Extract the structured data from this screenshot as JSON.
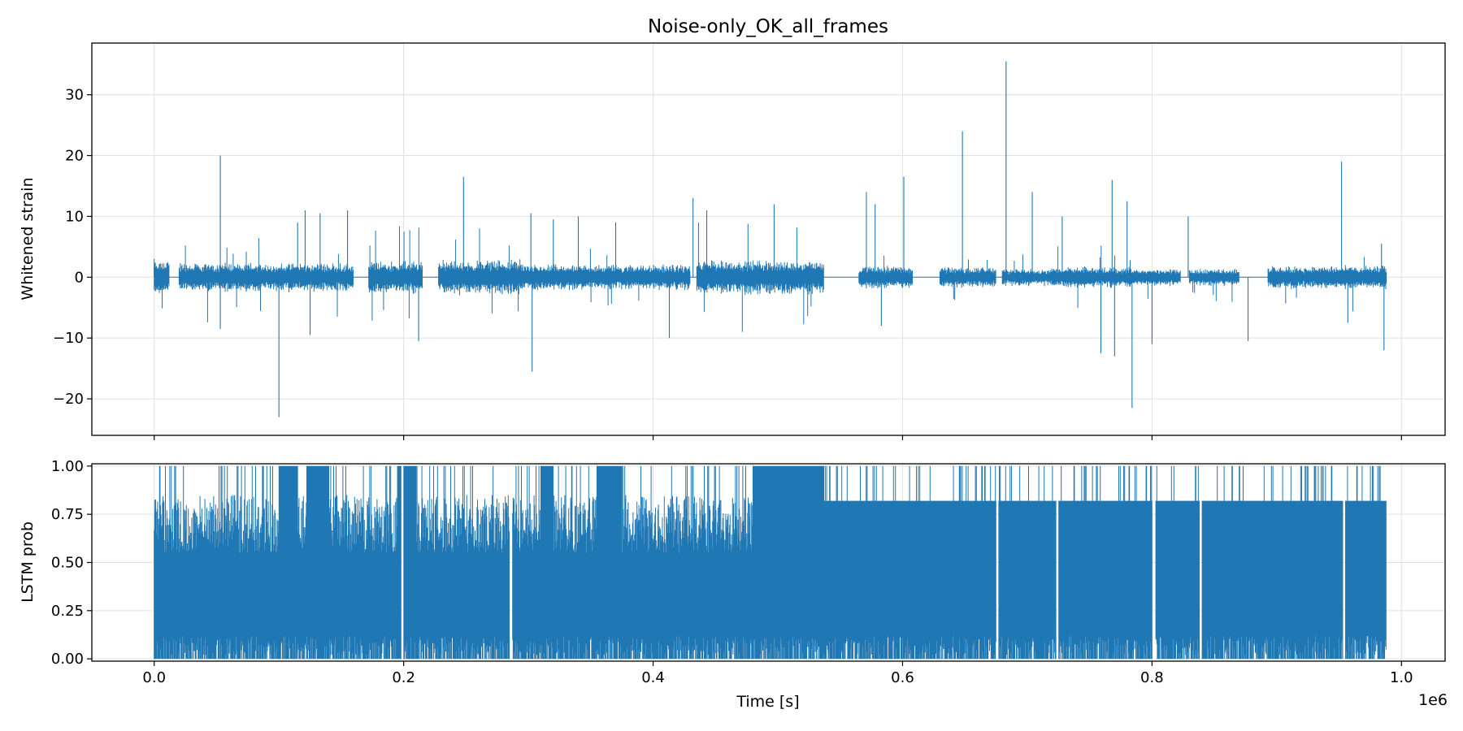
{
  "chart_data": [
    {
      "type": "line",
      "title": "Noise-only_OK_all_frames",
      "xlabel": "",
      "ylabel": "Whitened strain",
      "xlim": [
        -50000,
        1035000
      ],
      "ylim": [
        -26,
        38.5
      ],
      "xticks": [
        0,
        200000,
        400000,
        600000,
        800000,
        1000000
      ],
      "xtick_labels": [],
      "yticks": [
        -20,
        -10,
        0,
        10,
        20,
        30
      ],
      "ytick_labels": [
        "−20",
        "−10",
        "0",
        "10",
        "20",
        "30"
      ],
      "grid": true,
      "color": "#1f77b4",
      "series": [
        {
          "segments_x": [
            [
              0,
              12000
            ],
            [
              20000,
              160000
            ],
            [
              172000,
              215000
            ],
            [
              228000,
              295000
            ],
            [
              295000,
              430000
            ],
            [
              435000,
              507000
            ],
            [
              507000,
              537000
            ],
            [
              565000,
              608000
            ],
            [
              630000,
              675000
            ],
            [
              680000,
              720000
            ],
            [
              720000,
              783000
            ],
            [
              783000,
              823000
            ],
            [
              830000,
              870000
            ],
            [
              893000,
              988000
            ]
          ],
          "segment_amplitude": [
            3,
            2.5,
            2.8,
            3,
            2.2,
            3,
            3,
            2,
            1.8,
            1.5,
            1.8,
            1.5,
            1.5,
            2
          ],
          "spikes": [
            [
              0,
              3
            ],
            [
              53000,
              20
            ],
            [
              53000,
              -8.5
            ],
            [
              100000,
              -23
            ],
            [
              115000,
              9
            ],
            [
              121000,
              11
            ],
            [
              125000,
              -9.5
            ],
            [
              133000,
              10.5
            ],
            [
              155000,
              11
            ],
            [
              212000,
              -10.5
            ],
            [
              248000,
              16.5
            ],
            [
              302000,
              10.5
            ],
            [
              303000,
              -15.5
            ],
            [
              320000,
              9.5
            ],
            [
              340000,
              10
            ],
            [
              370000,
              9
            ],
            [
              413000,
              -10
            ],
            [
              432000,
              13
            ],
            [
              443000,
              11
            ],
            [
              497000,
              12
            ],
            [
              571000,
              14
            ],
            [
              578000,
              12
            ],
            [
              583000,
              -8
            ],
            [
              601000,
              16.5
            ],
            [
              648000,
              24
            ],
            [
              683000,
              35.5
            ],
            [
              704000,
              14
            ],
            [
              728000,
              10
            ],
            [
              759000,
              -12.5
            ],
            [
              768000,
              16
            ],
            [
              770000,
              -13
            ],
            [
              780000,
              12.5
            ],
            [
              784000,
              -21.5
            ],
            [
              800000,
              -11
            ],
            [
              829000,
              10
            ],
            [
              877000,
              -10.5
            ],
            [
              952000,
              19
            ],
            [
              957000,
              -7.5
            ],
            [
              984000,
              5.5
            ],
            [
              986000,
              -12
            ]
          ],
          "x_range": [
            0,
            988000
          ]
        }
      ]
    },
    {
      "type": "line",
      "title": "",
      "xlabel": "Time [s]",
      "ylabel": "LSTM prob",
      "xlim": [
        -50000,
        1035000
      ],
      "ylim": [
        -0.012,
        1.012
      ],
      "xticks": [
        0,
        200000,
        400000,
        600000,
        800000,
        1000000
      ],
      "xtick_labels": [
        "0.0",
        "0.2",
        "0.4",
        "0.6",
        "0.8",
        "1.0"
      ],
      "offset_label": "1e6",
      "yticks": [
        0,
        0.25,
        0.5,
        0.75,
        1.0
      ],
      "ytick_labels": [
        "0.00",
        "0.25",
        "0.50",
        "0.75",
        "1.00"
      ],
      "grid": true,
      "color": "#1f77b4",
      "series": [
        {
          "x_range": [
            0,
            988000
          ],
          "filled_ranges": [
            [
              0,
              537000
            ],
            [
              537000,
              988000
            ]
          ],
          "typical_high": [
            0.82,
            0.82
          ],
          "saturation_bands": [
            [
              100000,
              115000
            ],
            [
              122000,
              140000
            ],
            [
              195000,
              210000
            ],
            [
              310000,
              320000
            ],
            [
              355000,
              375000
            ],
            [
              480000,
              537000
            ]
          ],
          "gaps": [
            [
              198000,
              200000
            ],
            [
              285000,
              287000
            ],
            [
              675000,
              677000
            ],
            [
              723000,
              725000
            ],
            [
              800000,
              803000
            ],
            [
              838000,
              840000
            ],
            [
              953000,
              955000
            ]
          ]
        }
      ]
    }
  ]
}
